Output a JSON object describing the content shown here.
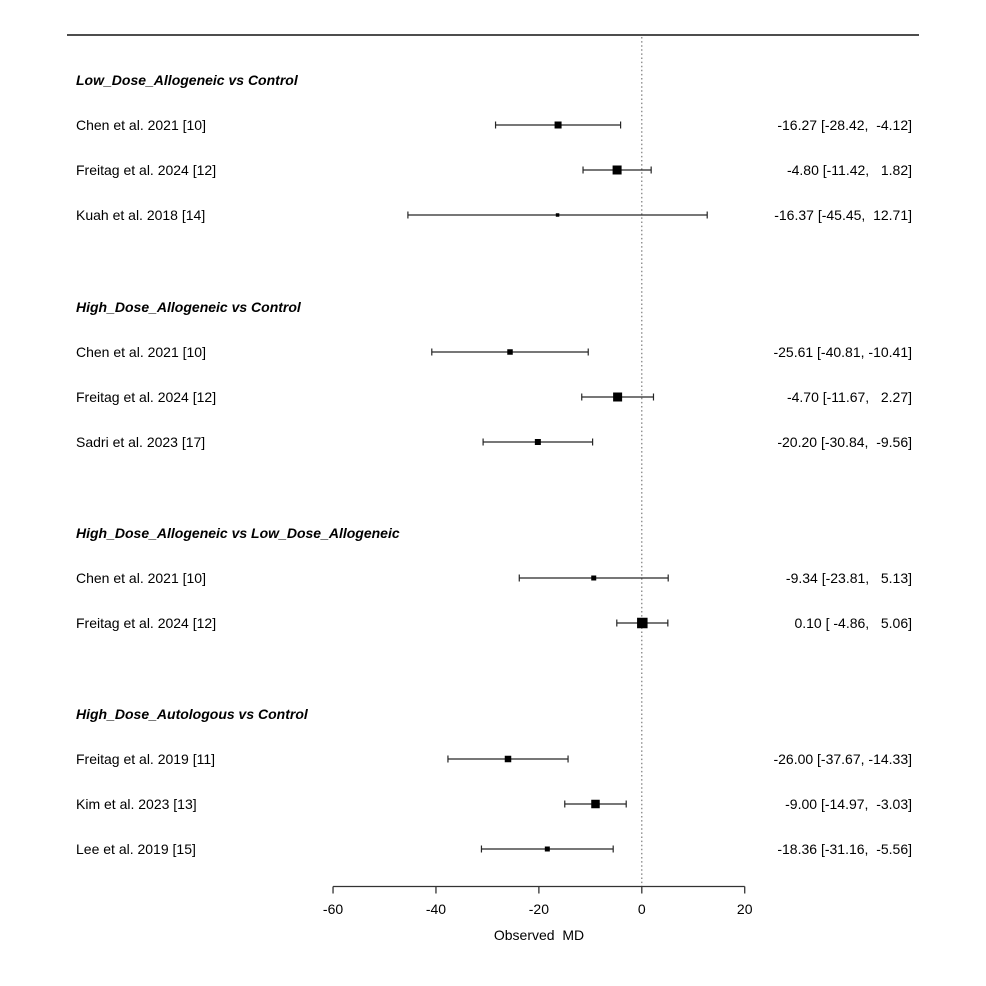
{
  "chart_data": {
    "type": "forest",
    "title": "",
    "xlabel": "Observed  MD",
    "xlim": [
      -60,
      20
    ],
    "x_ticks": [
      "-60",
      "-40",
      "-20",
      "0",
      "20"
    ],
    "x_tick_values": [
      -60,
      -40,
      -20,
      0,
      20
    ],
    "reference_line": 0,
    "grid": false,
    "groups": [
      {
        "label": "Low_Dose_Allogeneic vs Control",
        "studies": [
          {
            "label": "Chen et al. 2021 [10]",
            "md": -16.27,
            "ci_low": -28.42,
            "ci_high": -4.12,
            "estimate_label": "-16.27 [-28.42,  -4.12]",
            "marker_size": 7
          },
          {
            "label": "Freitag et al. 2024 [12]",
            "md": -4.8,
            "ci_low": -11.42,
            "ci_high": 1.82,
            "estimate_label": "-4.80 [-11.42,   1.82]",
            "marker_size": 9
          },
          {
            "label": "Kuah et al. 2018 [14]",
            "md": -16.37,
            "ci_low": -45.45,
            "ci_high": 12.71,
            "estimate_label": "-16.37 [-45.45,  12.71]",
            "marker_size": 3.5
          }
        ]
      },
      {
        "label": "High_Dose_Allogeneic vs Control",
        "studies": [
          {
            "label": "Chen et al. 2021 [10]",
            "md": -25.61,
            "ci_low": -40.81,
            "ci_high": -10.41,
            "estimate_label": "-25.61 [-40.81, -10.41]",
            "marker_size": 5.5
          },
          {
            "label": "Freitag et al. 2024 [12]",
            "md": -4.7,
            "ci_low": -11.67,
            "ci_high": 2.27,
            "estimate_label": "-4.70 [-11.67,   2.27]",
            "marker_size": 9
          },
          {
            "label": "Sadri et al. 2023 [17]",
            "md": -20.2,
            "ci_low": -30.84,
            "ci_high": -9.56,
            "estimate_label": "-20.20 [-30.84,  -9.56]",
            "marker_size": 6
          }
        ]
      },
      {
        "label": "High_Dose_Allogeneic vs Low_Dose_Allogeneic",
        "studies": [
          {
            "label": "Chen et al. 2021 [10]",
            "md": -9.34,
            "ci_low": -23.81,
            "ci_high": 5.13,
            "estimate_label": "-9.34 [-23.81,   5.13]",
            "marker_size": 5
          },
          {
            "label": "Freitag et al. 2024 [12]",
            "md": 0.1,
            "ci_low": -4.86,
            "ci_high": 5.06,
            "estimate_label": "0.10 [ -4.86,   5.06]",
            "marker_size": 10.5
          }
        ]
      },
      {
        "label": "High_Dose_Autologous vs Control",
        "studies": [
          {
            "label": "Freitag et al. 2019 [11]",
            "md": -26.0,
            "ci_low": -37.67,
            "ci_high": -14.33,
            "estimate_label": "-26.00 [-37.67, -14.33]",
            "marker_size": 6.5
          },
          {
            "label": "Kim et al. 2023 [13]",
            "md": -9.0,
            "ci_low": -14.97,
            "ci_high": -3.03,
            "estimate_label": "-9.00 [-14.97,  -3.03]",
            "marker_size": 8.5
          },
          {
            "label": "Lee et al. 2019 [15]",
            "md": -18.36,
            "ci_low": -31.16,
            "ci_high": -5.56,
            "estimate_label": "-18.36 [-31.16,  -5.56]",
            "marker_size": 5
          }
        ]
      }
    ],
    "colors": {
      "marker": "#000000",
      "ci_line": "#262626",
      "axis": "#333333",
      "reference_line": "#6e6e6e",
      "top_rule": "#4d4d4d",
      "text": "#000000"
    }
  }
}
